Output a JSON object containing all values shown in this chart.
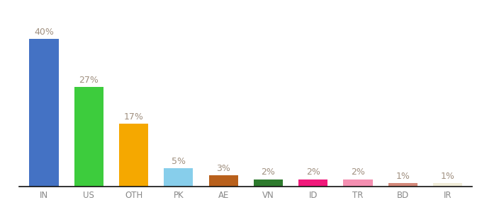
{
  "categories": [
    "IN",
    "US",
    "OTH",
    "PK",
    "AE",
    "VN",
    "ID",
    "TR",
    "BD",
    "IR"
  ],
  "values": [
    40,
    27,
    17,
    5,
    3,
    2,
    2,
    2,
    1,
    1
  ],
  "bar_colors": [
    "#4472c4",
    "#3dcc3d",
    "#f5a800",
    "#87ceeb",
    "#b8601c",
    "#2d7a2d",
    "#f0187a",
    "#f48fb1",
    "#d4897a",
    "#f0ecd8"
  ],
  "labels": [
    "40%",
    "27%",
    "17%",
    "5%",
    "3%",
    "2%",
    "2%",
    "2%",
    "1%",
    "1%"
  ],
  "background_color": "#ffffff",
  "label_color": "#a09080",
  "label_fontsize": 9,
  "tick_fontsize": 8.5,
  "tick_color": "#888888",
  "ylim": [
    0,
    46
  ],
  "bottom_spine_color": "#111111"
}
